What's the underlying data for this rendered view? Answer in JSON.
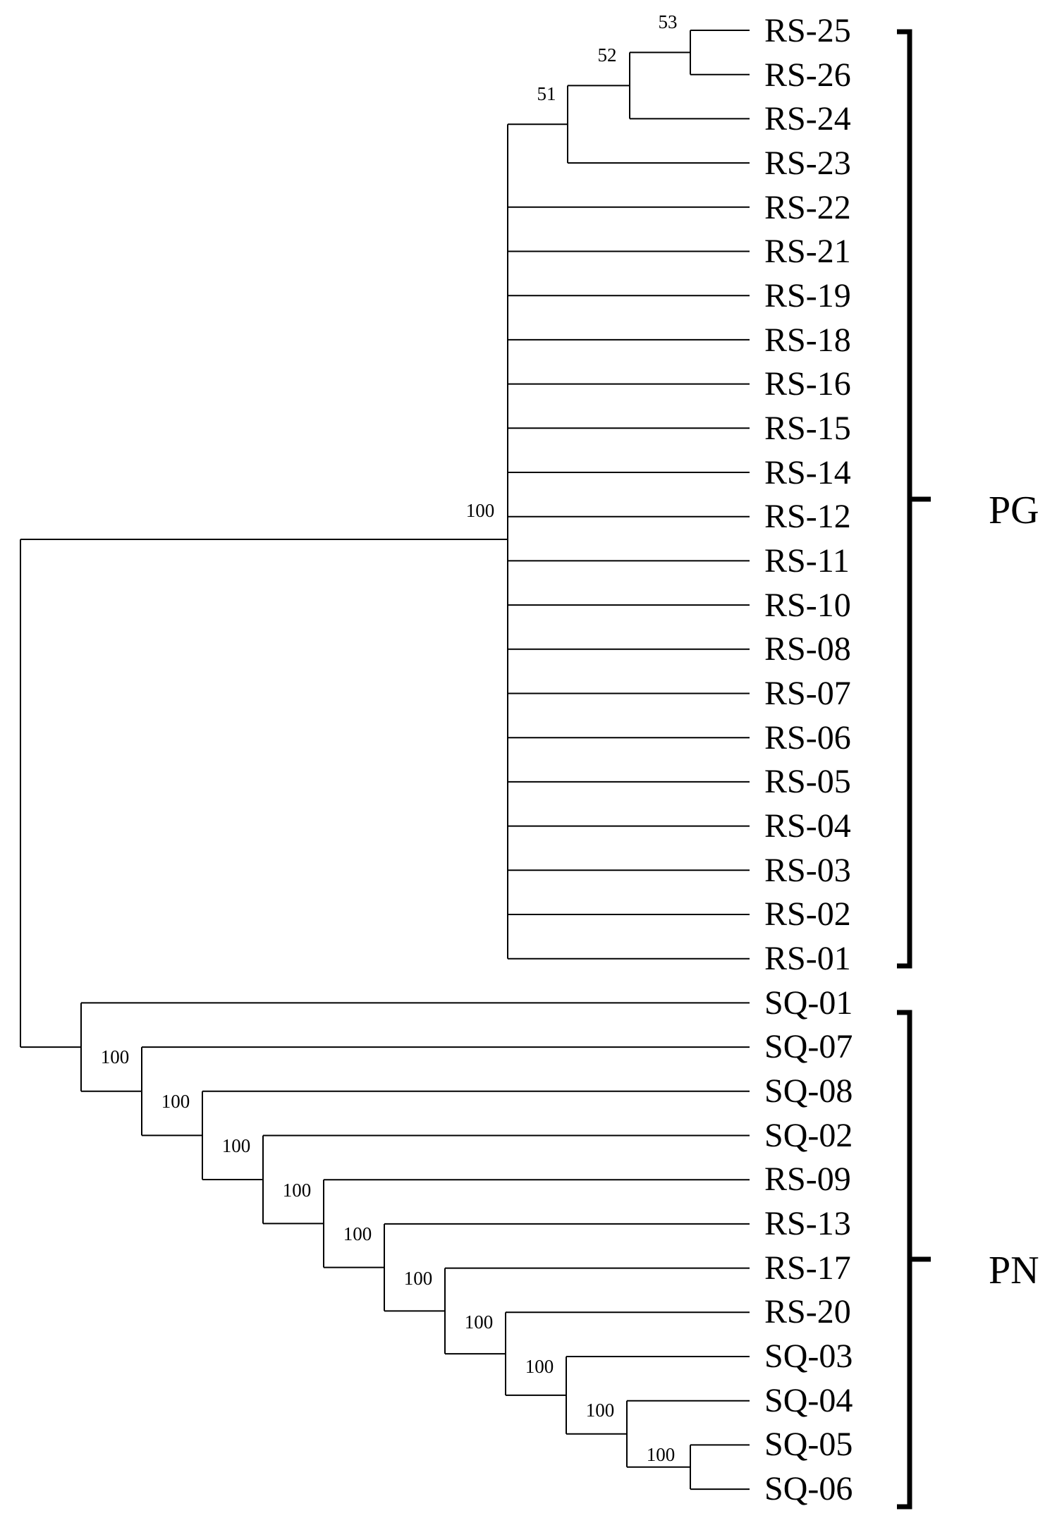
{
  "tree": {
    "taxa": [
      "RS-25",
      "RS-26",
      "RS-24",
      "RS-23",
      "RS-22",
      "RS-21",
      "RS-19",
      "RS-18",
      "RS-16",
      "RS-15",
      "RS-14",
      "RS-12",
      "RS-11",
      "RS-10",
      "RS-08",
      "RS-07",
      "RS-06",
      "RS-05",
      "RS-04",
      "RS-03",
      "RS-02",
      "RS-01",
      "SQ-01",
      "SQ-07",
      "SQ-08",
      "SQ-02",
      "RS-09",
      "RS-13",
      "RS-17",
      "RS-20",
      "SQ-03",
      "SQ-04",
      "SQ-05",
      "SQ-06"
    ],
    "support_values": [
      "53",
      "52",
      "51",
      "100",
      "100",
      "100",
      "100",
      "100",
      "100",
      "100",
      "100",
      "100",
      "100",
      "100"
    ],
    "groups": [
      {
        "label": "PG"
      },
      {
        "label": "PN"
      }
    ],
    "colors": {
      "line": "#000000",
      "background": "#ffffff"
    }
  }
}
